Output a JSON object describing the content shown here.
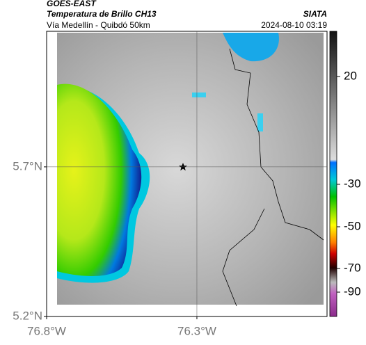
{
  "header": {
    "source": "GOES-EAST",
    "title": "Temperatura de Brillo CH13",
    "subtitle": "Vía Medellín - Quibdó 50km",
    "agency": "SIATA",
    "datetime": "2024-08-10 03:19"
  },
  "map": {
    "xlim": [
      -76.8,
      -75.867
    ],
    "ylim": [
      5.2,
      6.153
    ],
    "xticks": [
      {
        "value": -76.8,
        "label": "76.8°W"
      },
      {
        "value": -76.3,
        "label": "76.3°W"
      }
    ],
    "yticks": [
      {
        "value": 5.2,
        "label": "5.2°N"
      },
      {
        "value": 5.7,
        "label": "5.7°N"
      }
    ],
    "colorbar_ticks": [
      20,
      -30,
      -50,
      -70,
      -90
    ]
  }
}
